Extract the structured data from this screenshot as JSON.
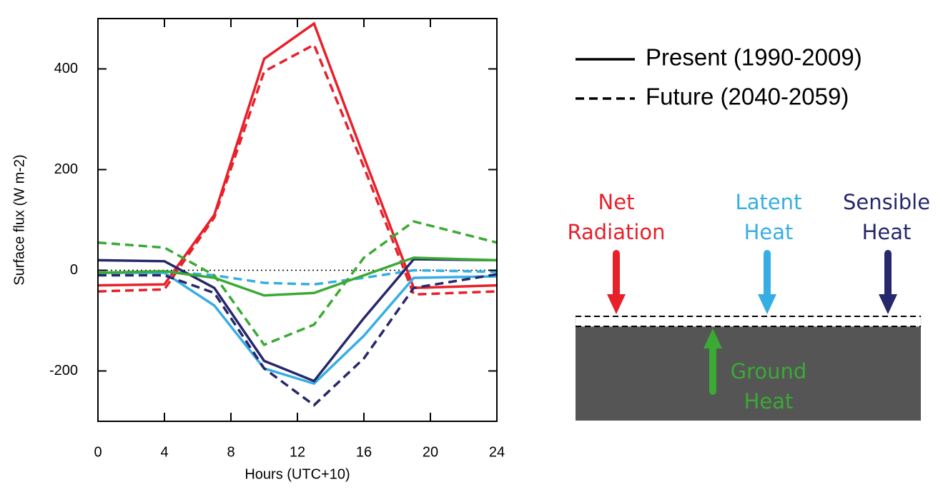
{
  "chart_data": {
    "type": "line",
    "x_label": "Hours (UTC+10)",
    "y_label": "Surface flux (W m-2)",
    "x": [
      0,
      4,
      7,
      10,
      13,
      16,
      19,
      24
    ],
    "xlim": [
      0,
      24
    ],
    "xticks": [
      0,
      4,
      8,
      12,
      16,
      20,
      24
    ],
    "ylim": [
      -300,
      500
    ],
    "yticks": [
      -200,
      0,
      200,
      400
    ],
    "zero_line": true,
    "legend": [
      {
        "label": "Present (1990-2009)",
        "dash": "solid"
      },
      {
        "label": "Future (2040-2059)",
        "dash": "dashed"
      }
    ],
    "series": [
      {
        "name": "Net Radiation",
        "color": "#e8202a",
        "values": [
          [
            -30,
            -28,
            110,
            420,
            490,
            225,
            -35,
            -30
          ],
          [
            -42,
            -38,
            105,
            395,
            448,
            205,
            -48,
            -42
          ]
        ]
      },
      {
        "name": "Latent Heat",
        "color": "#36aee3",
        "values": [
          [
            -5,
            -5,
            -70,
            -195,
            -225,
            -130,
            -15,
            -12
          ],
          [
            -5,
            -2,
            -10,
            -25,
            -28,
            -15,
            0,
            -3
          ]
        ]
      },
      {
        "name": "Sensible Heat",
        "color": "#27276b",
        "values": [
          [
            20,
            18,
            -35,
            -180,
            -220,
            -95,
            22,
            20
          ],
          [
            -10,
            -10,
            -45,
            -195,
            -268,
            -175,
            -35,
            -8
          ]
        ]
      },
      {
        "name": "Ground Heat",
        "color": "#3aaa35",
        "values": [
          [
            -5,
            -2,
            -15,
            -50,
            -45,
            -10,
            25,
            20
          ],
          [
            55,
            45,
            -10,
            -148,
            -108,
            25,
            97,
            55
          ]
        ]
      }
    ]
  }
}
